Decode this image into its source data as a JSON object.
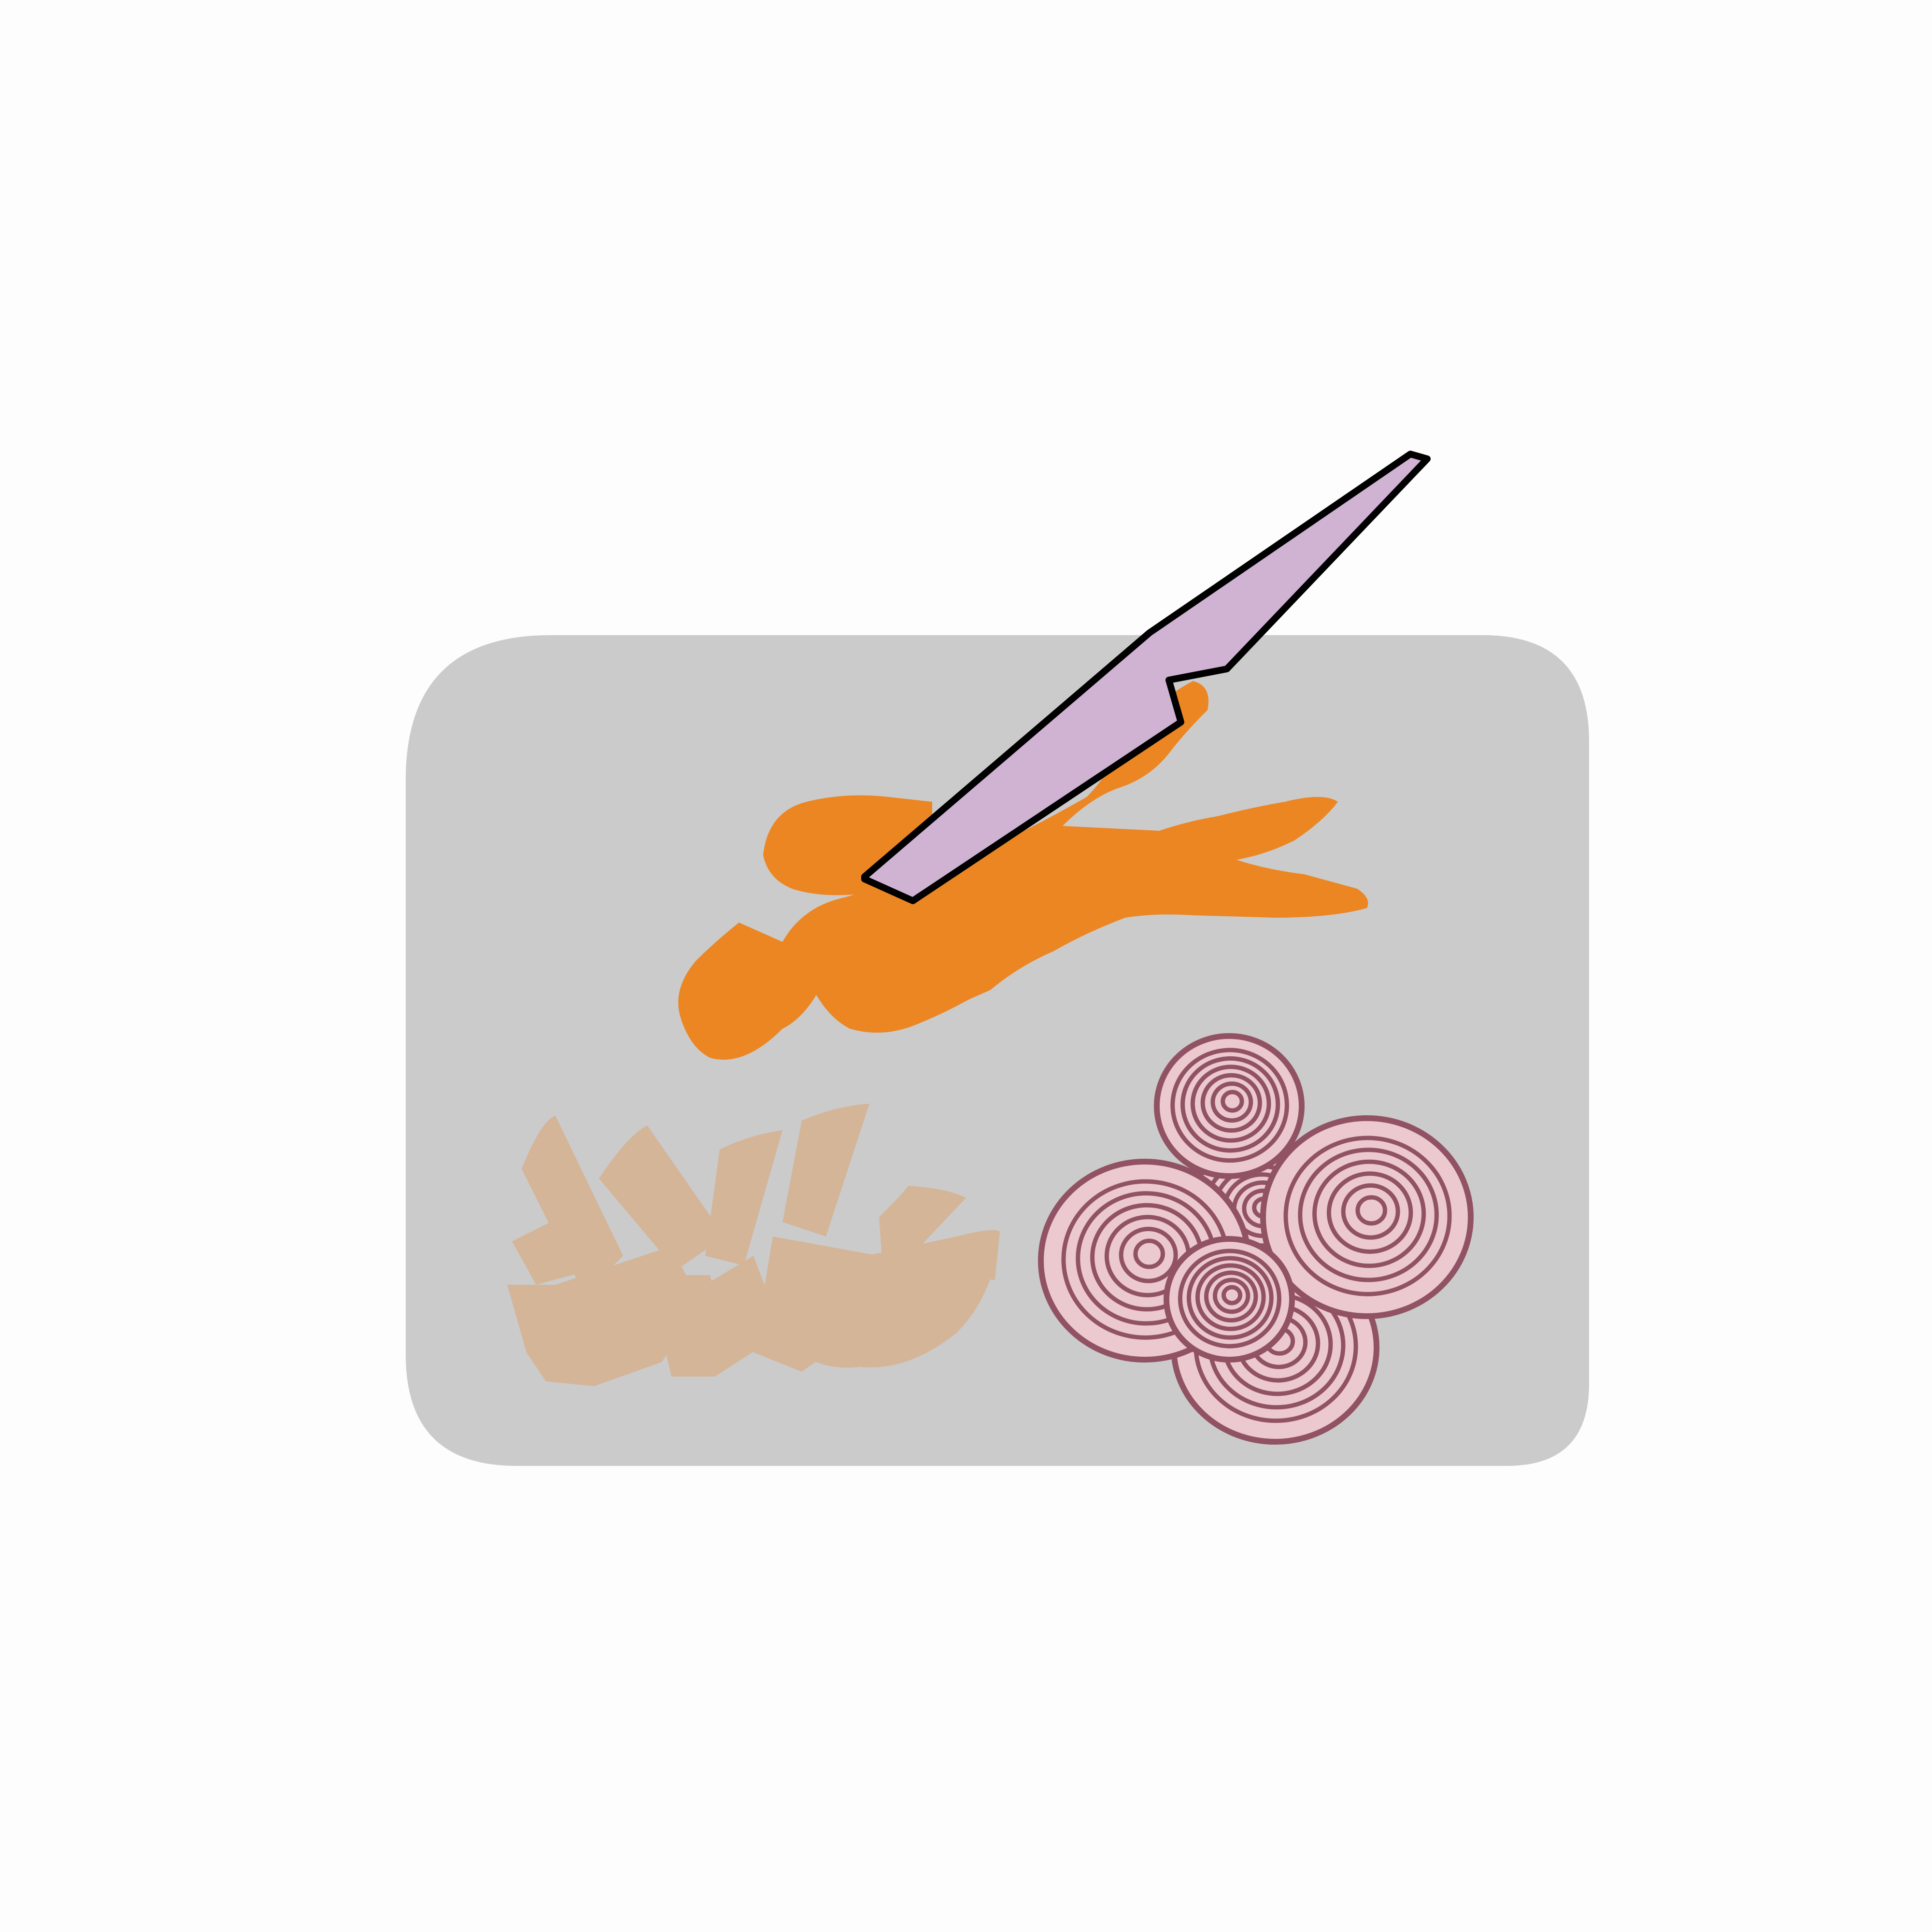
{
  "scene": {
    "background_color": "#fdfdfd",
    "board": {
      "icon": "cutting-board-icon",
      "color": "#cbcbcb"
    },
    "carrot": {
      "icon": "carrot-icon",
      "color": "#ec8623"
    },
    "knife": {
      "icon": "knife-icon",
      "blade_color": "#d0b2d3",
      "outline_color": "#000000"
    },
    "potato_strips": {
      "icon": "potato-strips-icon",
      "color": "#d4b598"
    },
    "onion_slices": {
      "icon": "onion-slices-icon",
      "fill_color": "#ecc9ce",
      "ring_color": "#915364",
      "count": 6
    }
  }
}
